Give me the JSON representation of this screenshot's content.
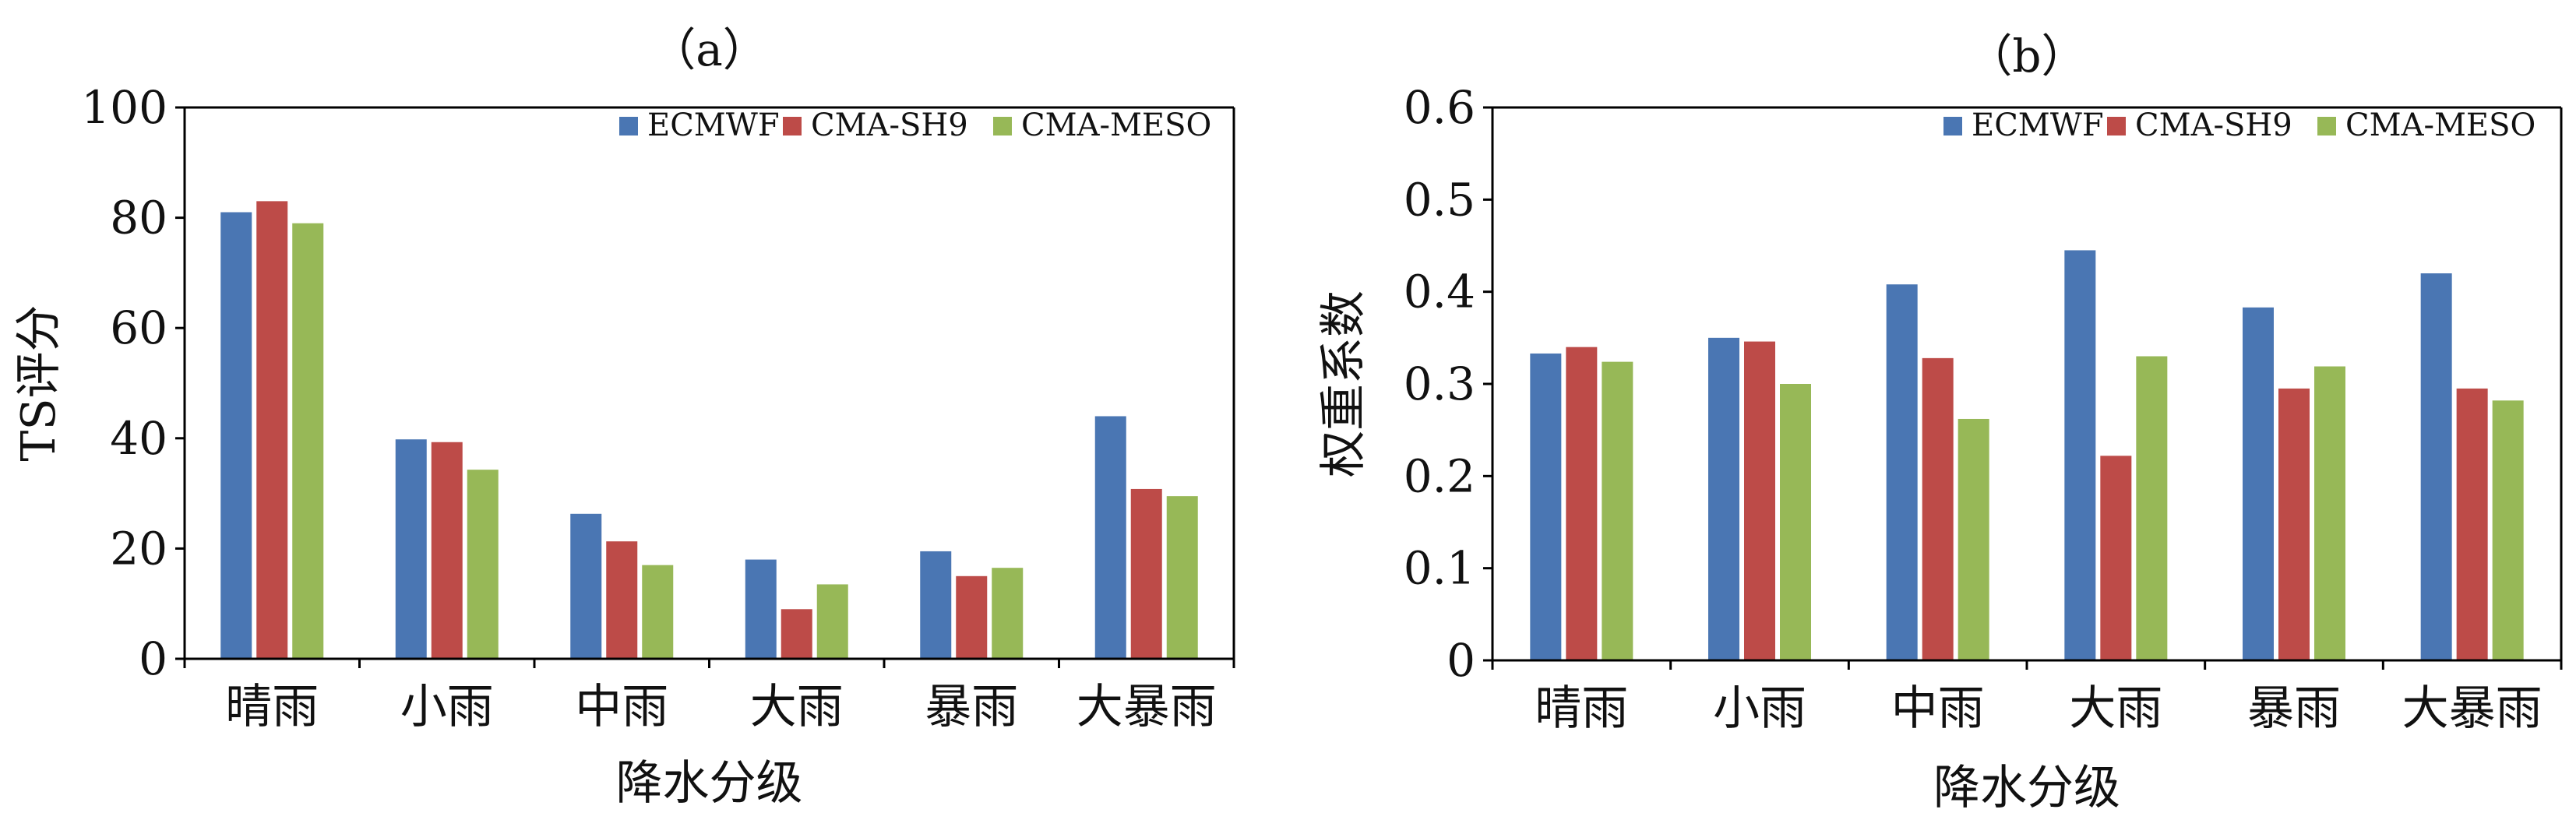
{
  "chart_data": [
    {
      "type": "bar",
      "panel_label": "（a）",
      "xlabel": "降水分级",
      "ylabel": "TS评分",
      "ylim": [
        0,
        100
      ],
      "yticks": [
        "0",
        "20",
        "40",
        "60",
        "80",
        "100"
      ],
      "grid": false,
      "legend": "top-right",
      "categories": [
        "晴雨",
        "小雨",
        "中雨",
        "大雨",
        "暴雨",
        "大暴雨"
      ],
      "series": [
        {
          "name": "ECMWF",
          "color": "#4a76b3",
          "values": [
            81,
            39.8,
            26.3,
            18,
            19.5,
            44
          ]
        },
        {
          "name": "CMA-SH9",
          "color": "#bd4b48",
          "values": [
            83,
            39.3,
            21.3,
            9,
            15,
            30.8
          ]
        },
        {
          "name": "CMA-MESO",
          "color": "#97b857",
          "values": [
            79,
            34.3,
            17,
            13.5,
            16.5,
            29.5
          ]
        }
      ]
    },
    {
      "type": "bar",
      "panel_label": "（b）",
      "xlabel": "降水分级",
      "ylabel": "权重系数",
      "ylim": [
        0,
        0.6
      ],
      "yticks": [
        "0",
        "0.1",
        "0.2",
        "0.3",
        "0.4",
        "0.5",
        "0.6"
      ],
      "grid": false,
      "legend": "top-right",
      "categories": [
        "晴雨",
        "小雨",
        "中雨",
        "大雨",
        "暴雨",
        "大暴雨"
      ],
      "series": [
        {
          "name": "ECMWF",
          "color": "#4a76b3",
          "values": [
            0.333,
            0.35,
            0.408,
            0.445,
            0.383,
            0.42
          ]
        },
        {
          "name": "CMA-SH9",
          "color": "#bd4b48",
          "values": [
            0.34,
            0.346,
            0.328,
            0.222,
            0.295,
            0.295
          ]
        },
        {
          "name": "CMA-MESO",
          "color": "#97b857",
          "values": [
            0.324,
            0.3,
            0.262,
            0.33,
            0.319,
            0.282
          ]
        }
      ]
    }
  ]
}
